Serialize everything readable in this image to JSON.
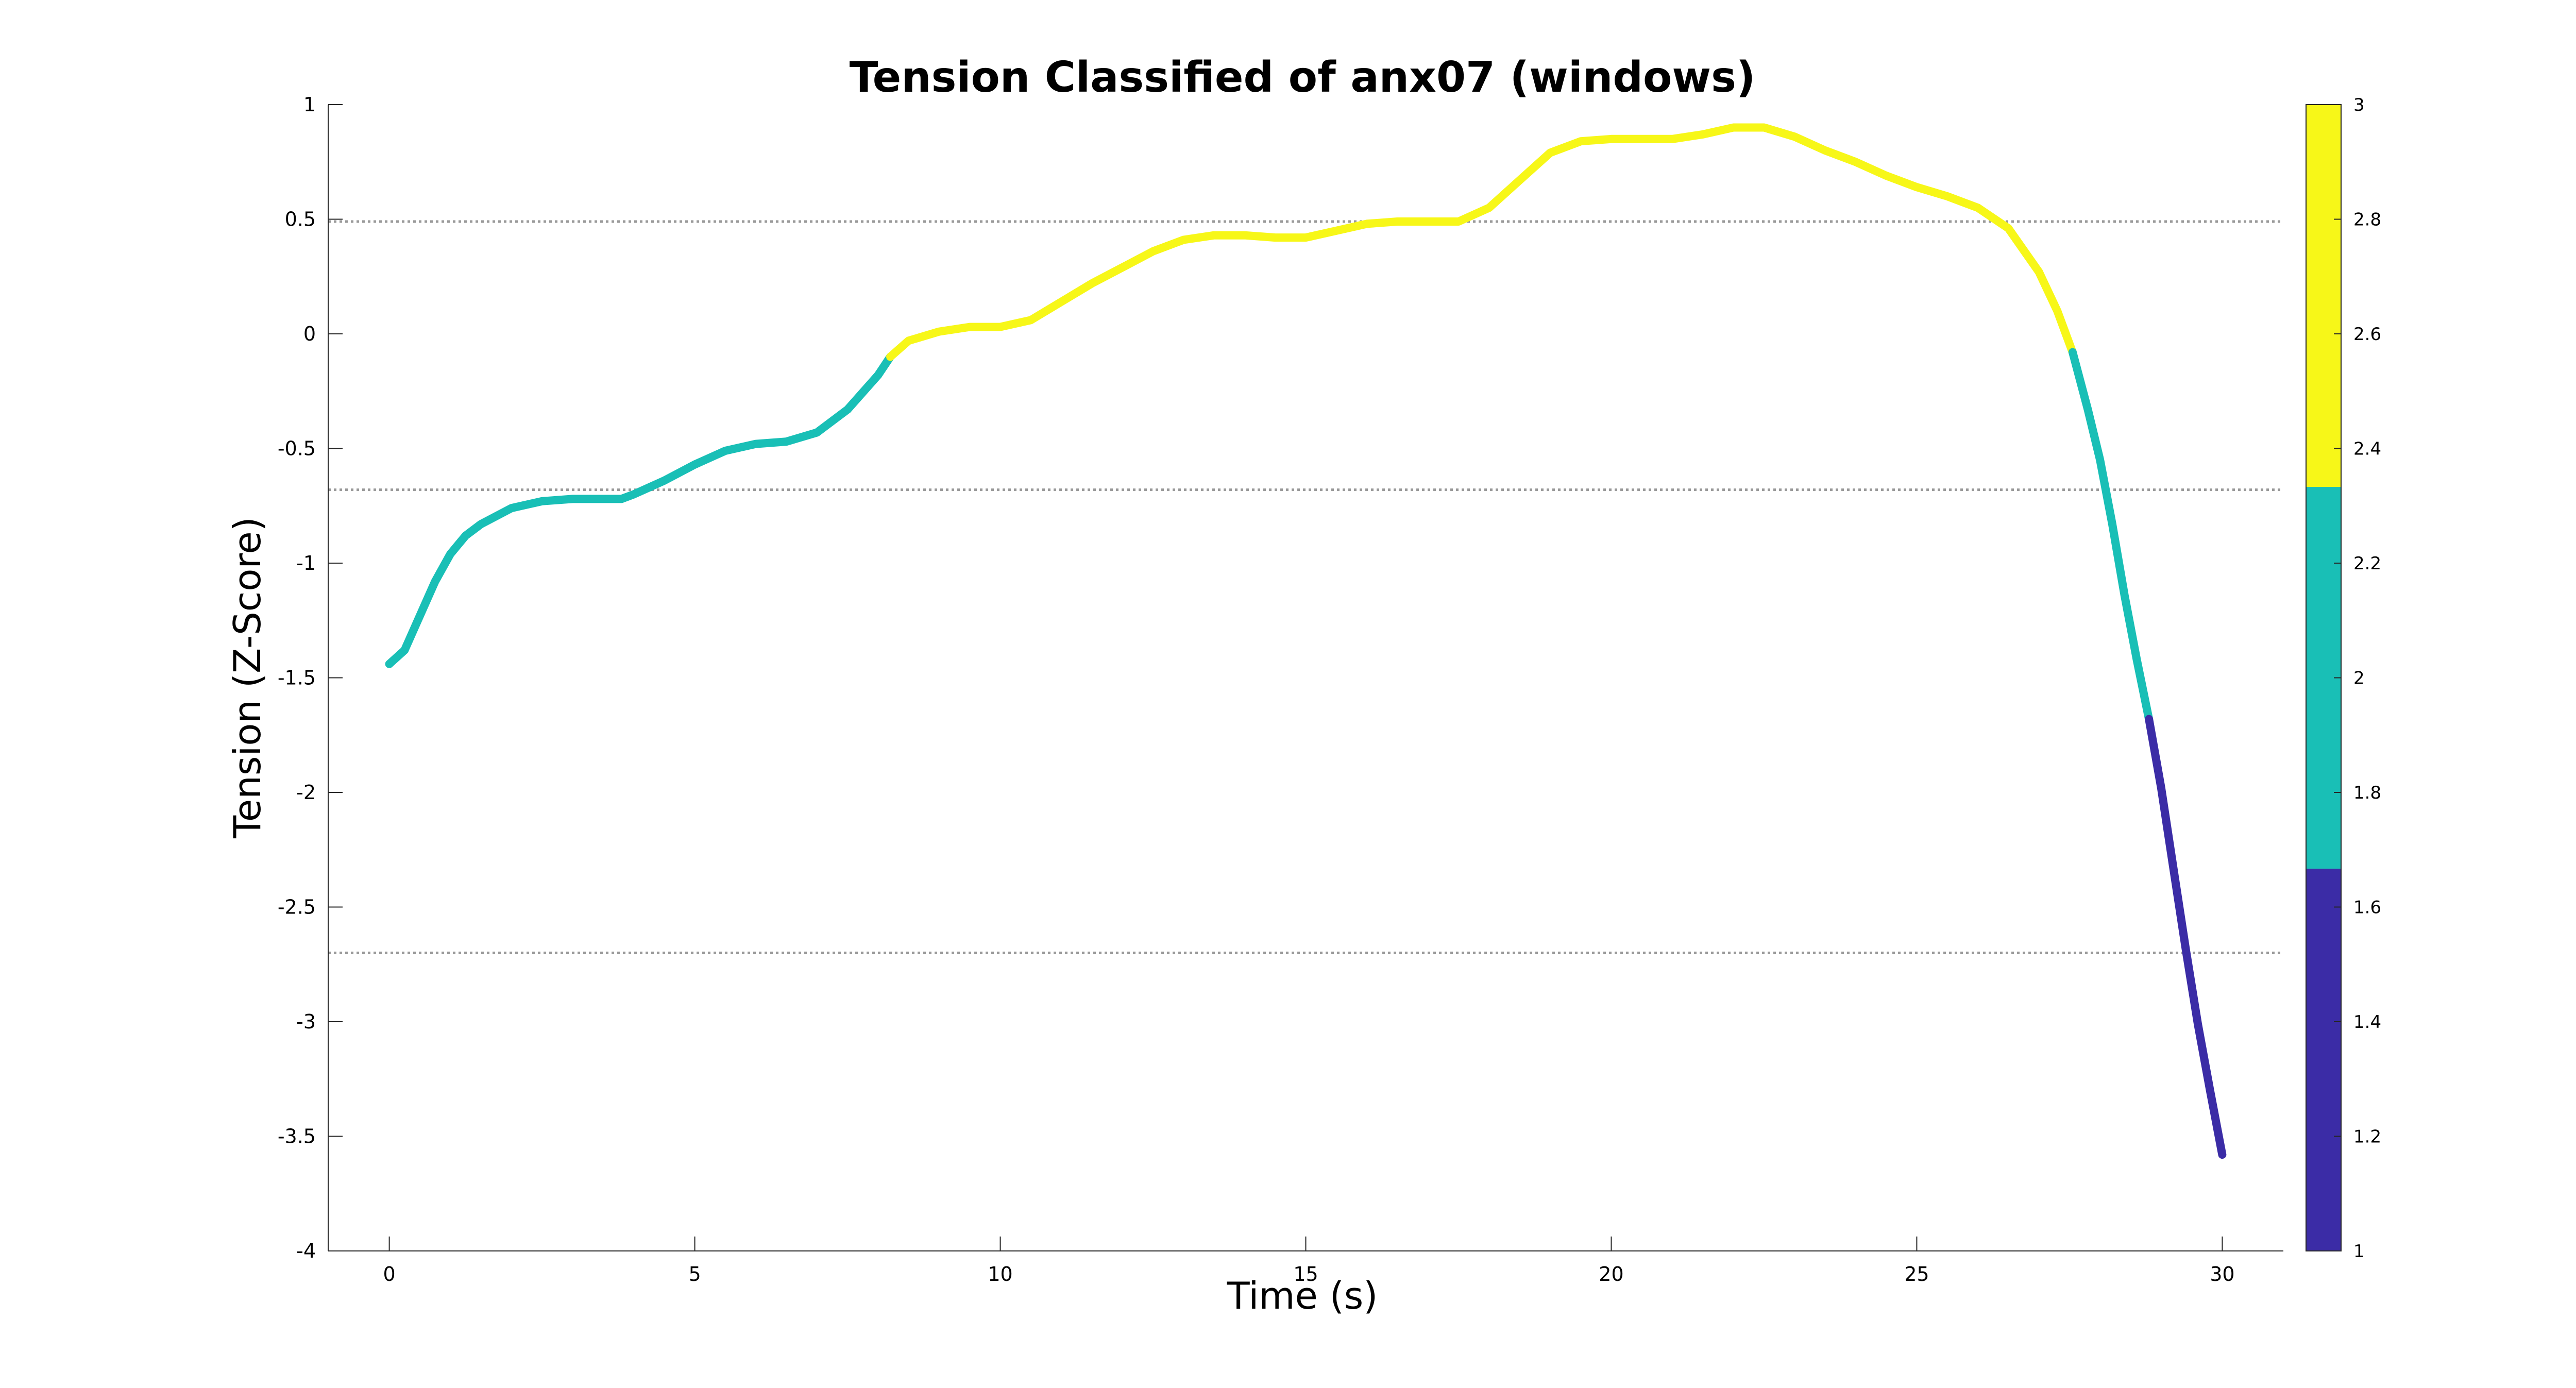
{
  "chart_data": {
    "type": "line",
    "title": "Tension Classified of anx07 (windows)",
    "xlabel": "Time (s)",
    "ylabel": "Tension (Z-Score)",
    "xlim": [
      -1,
      31
    ],
    "ylim": [
      -4,
      1
    ],
    "xticks": [
      0,
      5,
      10,
      15,
      20,
      25,
      30
    ],
    "yticks": [
      1,
      0.5,
      0,
      -0.5,
      -1,
      -1.5,
      -2,
      -2.5,
      -3,
      -3.5,
      -4
    ],
    "grid": false,
    "threshold_lines": [
      0.49,
      -0.68,
      -2.7
    ],
    "colorbar": {
      "limits": [
        1,
        3
      ],
      "ticks": [
        3,
        2.8,
        2.6,
        2.4,
        2.2,
        2,
        1.8,
        1.6,
        1.4,
        1.2,
        1
      ],
      "bands": [
        {
          "from": 1,
          "to": 1.667,
          "color": "#3b2ca6"
        },
        {
          "from": 1.667,
          "to": 2.333,
          "color": "#19bfb6"
        },
        {
          "from": 2.333,
          "to": 3,
          "color": "#f7f718"
        }
      ]
    },
    "class_colors": {
      "1": "#3b2ca6",
      "2": "#19bfb6",
      "3": "#f7f718"
    },
    "series": [
      {
        "class": 2,
        "x": [
          0,
          0.25,
          0.5,
          0.75,
          1.0,
          1.25,
          1.5,
          2.0,
          2.5,
          3.0,
          3.5,
          3.8,
          4.0,
          4.5,
          5.0,
          5.5,
          6.0,
          6.5,
          7.0,
          7.5,
          8.0,
          8.2
        ],
        "y": [
          -1.44,
          -1.38,
          -1.23,
          -1.08,
          -0.96,
          -0.88,
          -0.83,
          -0.76,
          -0.73,
          -0.72,
          -0.72,
          -0.72,
          -0.7,
          -0.64,
          -0.57,
          -0.51,
          -0.48,
          -0.47,
          -0.43,
          -0.33,
          -0.18,
          -0.1
        ]
      },
      {
        "class": 3,
        "x": [
          8.2,
          8.5,
          9.0,
          9.5,
          10.0,
          10.5,
          11.0,
          11.5,
          12.0,
          12.5,
          13.0,
          13.5,
          14.0,
          14.5,
          15.0,
          15.5,
          16.0,
          16.5,
          17.0,
          17.5,
          18.0,
          18.5,
          19.0,
          19.5,
          20.0,
          20.5,
          21.0,
          21.5,
          22.0,
          22.5,
          23.0,
          23.5,
          24.0,
          24.5,
          25.0,
          25.5,
          26.0,
          26.5,
          27.0,
          27.3,
          27.55
        ],
        "y": [
          -0.1,
          -0.03,
          0.01,
          0.03,
          0.03,
          0.06,
          0.14,
          0.22,
          0.29,
          0.36,
          0.41,
          0.43,
          0.43,
          0.42,
          0.42,
          0.45,
          0.48,
          0.49,
          0.49,
          0.49,
          0.55,
          0.67,
          0.79,
          0.84,
          0.85,
          0.85,
          0.85,
          0.87,
          0.9,
          0.9,
          0.86,
          0.8,
          0.75,
          0.69,
          0.64,
          0.6,
          0.55,
          0.46,
          0.27,
          0.1,
          -0.08
        ]
      },
      {
        "class": 2,
        "x": [
          27.55,
          27.8,
          28.0,
          28.2,
          28.4,
          28.6,
          28.8
        ],
        "y": [
          -0.08,
          -0.33,
          -0.55,
          -0.83,
          -1.14,
          -1.42,
          -1.68
        ]
      },
      {
        "class": 1,
        "x": [
          28.8,
          29.0,
          29.2,
          29.4,
          29.6,
          29.8,
          30.0
        ],
        "y": [
          -1.68,
          -1.98,
          -2.33,
          -2.68,
          -3.01,
          -3.3,
          -3.58
        ]
      }
    ]
  }
}
